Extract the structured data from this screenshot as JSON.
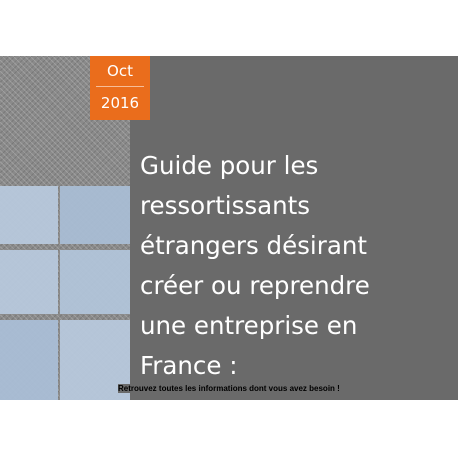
{
  "badge": {
    "month": "Oct",
    "year": "2016"
  },
  "title": "Guide pour les\nressortissants\nétrangers désirant\ncréer ou reprendre\nune entreprise en\nFrance :",
  "subtitle": "Retrouvez toutes les informations dont vous avez besoin !",
  "colors": {
    "accent": "#ea6d1c",
    "panel": "#6a6a6a",
    "tile": "#b7c8dc"
  }
}
